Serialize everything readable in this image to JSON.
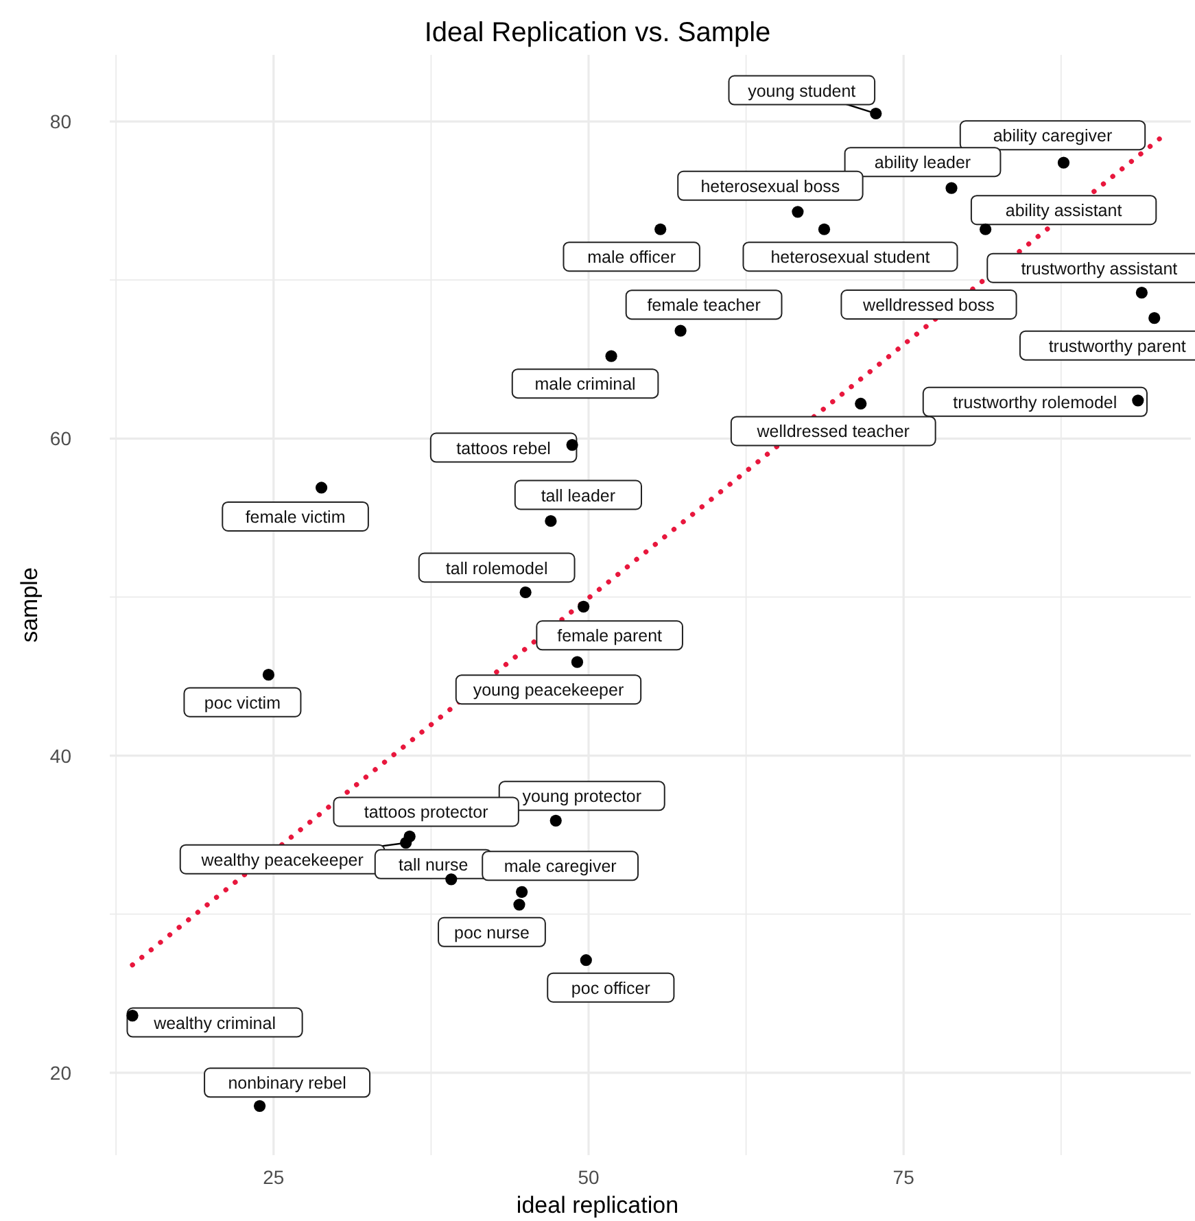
{
  "chart_data": {
    "type": "scatter",
    "title": "Ideal Replication vs. Sample",
    "xlabel": "ideal replication",
    "ylabel": "sample",
    "xlim": [
      12,
      97.8
    ],
    "ylim": [
      14.8,
      84.2
    ],
    "xticks": [
      {
        "value": 12.5,
        "label": null
      },
      25,
      {
        "value": 37.5,
        "label": null
      },
      50,
      {
        "value": 62.5,
        "label": null
      },
      75,
      {
        "value": 87.5,
        "label": null
      }
    ],
    "yticks": [
      20,
      {
        "value": 30,
        "label": null
      },
      40,
      {
        "value": 50,
        "label": null
      },
      60,
      {
        "value": 70,
        "label": null
      },
      80
    ],
    "grid": true,
    "marker": "circle",
    "series": [
      {
        "color": "#000000",
        "x": [
          72.8,
          87.7,
          78.8,
          66.6,
          55.7,
          68.7,
          81.5,
          93.9,
          94.9,
          57.3,
          51.8,
          71.6,
          93.6,
          48.7,
          28.8,
          47.0,
          45.0,
          49.6,
          49.1,
          24.6,
          47.4,
          35.8,
          35.5,
          39.1,
          44.7,
          44.5,
          49.8,
          13.8,
          23.9
        ],
        "values": [
          80.5,
          77.4,
          75.8,
          74.3,
          73.2,
          73.2,
          73.2,
          69.2,
          67.6,
          66.8,
          65.2,
          62.2,
          62.4,
          59.6,
          56.9,
          54.8,
          50.3,
          49.4,
          45.9,
          45.1,
          35.9,
          34.9,
          34.5,
          32.2,
          31.4,
          30.6,
          27.1,
          23.6,
          17.9
        ]
      },
      {
        "type": "line",
        "color": "#e8173d",
        "line_style": "dotted",
        "marker": "none",
        "x": [
          13.8,
          95.3
        ],
        "values": [
          26.8,
          78.9
        ]
      }
    ],
    "annotations": [
      {
        "text": "young student",
        "x": 72.8,
        "y": 80.5
      },
      {
        "text": "ability caregiver",
        "x": 87.7,
        "y": 77.4
      },
      {
        "text": "ability leader",
        "x": 78.8,
        "y": 75.8
      },
      {
        "text": "heterosexual boss",
        "x": 66.6,
        "y": 74.3
      },
      {
        "text": "male officer",
        "x": 55.7,
        "y": 73.2
      },
      {
        "text": "heterosexual student",
        "x": 68.7,
        "y": 73.2
      },
      "welldressed boss",
      {
        "text": "ability assistant",
        "x": 81.5,
        "y": 73.2
      },
      {
        "text": "trustworthy assistant",
        "x": 93.9,
        "y": 69.2
      },
      {
        "text": "trustworthy parent",
        "x": 94.9,
        "y": 67.6
      },
      {
        "text": "female teacher",
        "x": 57.3,
        "y": 66.8
      },
      {
        "text": "male criminal",
        "x": 51.8,
        "y": 65.2
      },
      {
        "text": "welldressed teacher",
        "x": 71.6,
        "y": 62.2
      },
      {
        "text": "trustworthy rolemodel",
        "x": 93.6,
        "y": 62.4
      },
      {
        "text": "tattoos rebel",
        "x": 48.7,
        "y": 59.6
      },
      {
        "text": "female victim",
        "x": 28.8,
        "y": 56.9
      },
      {
        "text": "tall leader",
        "x": 47.0,
        "y": 54.8
      },
      {
        "text": "tall rolemodel",
        "x": 45.0,
        "y": 50.3
      },
      {
        "text": "female parent",
        "x": 49.6,
        "y": 49.4
      },
      {
        "text": "young peacekeeper",
        "x": 49.1,
        "y": 45.9
      },
      {
        "text": "poc victim",
        "x": 24.6,
        "y": 45.1
      },
      {
        "text": "young protector",
        "x": 47.4,
        "y": 35.9
      },
      {
        "text": "tattoos protector",
        "x": 35.8,
        "y": 34.9
      },
      {
        "text": "wealthy peacekeeper",
        "x": 35.5,
        "y": 34.5
      },
      {
        "text": "tall nurse",
        "x": 39.1,
        "y": 32.2
      },
      {
        "text": "male caregiver",
        "x": 44.7,
        "y": 31.4
      },
      {
        "text": "poc nurse",
        "x": 44.5,
        "y": 30.6
      },
      {
        "text": "poc officer",
        "x": 49.8,
        "y": 27.1
      },
      {
        "text": "wealthy criminal",
        "x": 13.8,
        "y": 23.6
      },
      {
        "text": "nonbinary rebel",
        "x": 23.9,
        "y": 17.9
      }
    ]
  }
}
